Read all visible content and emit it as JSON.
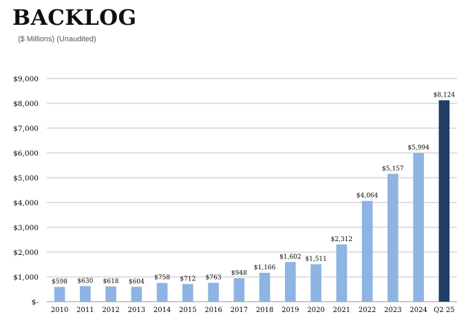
{
  "header": {
    "title": "BACKLOG",
    "subtitle": "($ Millions) (Unaudited)"
  },
  "colors": {
    "bar": "#8db4e2",
    "highlight_bar": "#1f3f66",
    "grid": "#bfbfbf",
    "axis_text": "#000000"
  },
  "chart_data": {
    "type": "bar",
    "title": "BACKLOG",
    "subtitle": "($ Millions) (Unaudited)",
    "xlabel": "",
    "ylabel": "",
    "categories": [
      "2010",
      "2011",
      "2012",
      "2013",
      "2014",
      "2015",
      "2016",
      "2017",
      "2018",
      "2019",
      "2020",
      "2021",
      "2022",
      "2023",
      "2024",
      "Q2 25"
    ],
    "values": [
      598,
      630,
      618,
      604,
      758,
      712,
      763,
      948,
      1166,
      1602,
      1511,
      2312,
      4064,
      5157,
      5994,
      8124
    ],
    "data_labels": [
      "$598",
      "$630",
      "$618",
      "$604",
      "$758",
      "$712",
      "$763",
      "$948",
      "$1,166",
      "$1,602",
      "$1,511",
      "$2,312",
      "$4,064",
      "$5,157",
      "$5,994",
      "$8,124"
    ],
    "highlight_category": "Q2 25",
    "ylim": [
      0,
      9000
    ],
    "yticks": [
      0,
      1000,
      2000,
      3000,
      4000,
      5000,
      6000,
      7000,
      8000,
      9000
    ],
    "ytick_labels": [
      "$-",
      "$1,000",
      "$2,000",
      "$3,000",
      "$4,000",
      "$5,000",
      "$6,000",
      "$7,000",
      "$8,000",
      "$9,000"
    ],
    "grid": true,
    "legend": "none"
  }
}
